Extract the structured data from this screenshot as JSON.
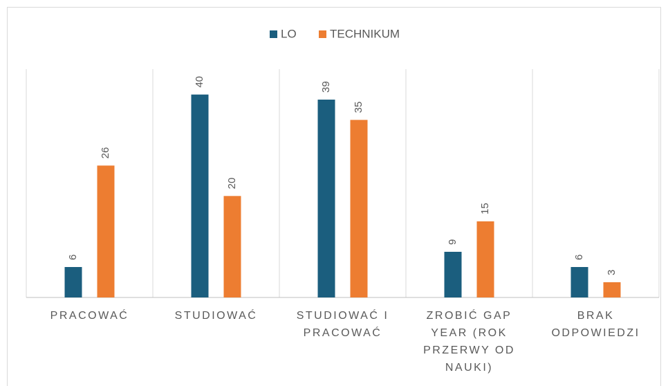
{
  "chart_data": {
    "type": "bar",
    "categories": [
      "PRACOWAĆ",
      "STUDIOWAĆ",
      "STUDIOWAĆ I PRACOWAĆ",
      "ZROBIĆ GAP YEAR (ROK PRZERWY OD NAUKI)",
      "BRAK ODPOWIEDZI"
    ],
    "series": [
      {
        "name": "LO",
        "color": "#1b5e7e",
        "values": [
          6,
          40,
          39,
          9,
          6
        ]
      },
      {
        "name": "TECHNIKUM",
        "color": "#ed7d31",
        "values": [
          26,
          20,
          35,
          15,
          3
        ]
      }
    ],
    "ylim": [
      0,
      45
    ],
    "legend": "top",
    "data_labels": true
  }
}
